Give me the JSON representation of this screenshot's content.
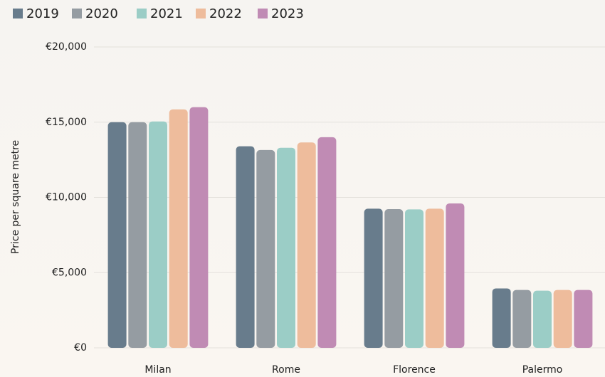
{
  "chart_data": {
    "type": "bar",
    "y_label": "Price per square metre",
    "categories": [
      "Milan",
      "Rome",
      "Florence",
      "Palermo"
    ],
    "series": [
      {
        "name": "2019",
        "color": "#687c8c",
        "values": [
          15000,
          13400,
          9250,
          3950
        ]
      },
      {
        "name": "2020",
        "color": "#959ca2",
        "values": [
          15000,
          13150,
          9220,
          3850
        ]
      },
      {
        "name": "2021",
        "color": "#9bcdc6",
        "values": [
          15050,
          13300,
          9200,
          3800
        ]
      },
      {
        "name": "2022",
        "color": "#eebc9c",
        "values": [
          15850,
          13650,
          9250,
          3850
        ]
      },
      {
        "name": "2023",
        "color": "#c08bb4",
        "values": [
          16000,
          14000,
          9600,
          3850
        ]
      }
    ],
    "ylim": [
      0,
      20000
    ],
    "yticks": [
      {
        "value": 0,
        "label": "€0"
      },
      {
        "value": 5000,
        "label": "€5,000"
      },
      {
        "value": 10000,
        "label": "€10,000"
      },
      {
        "value": 15000,
        "label": "€15,000"
      },
      {
        "value": 20000,
        "label": "€20,000"
      }
    ],
    "grid": true,
    "legend": "top-left"
  }
}
